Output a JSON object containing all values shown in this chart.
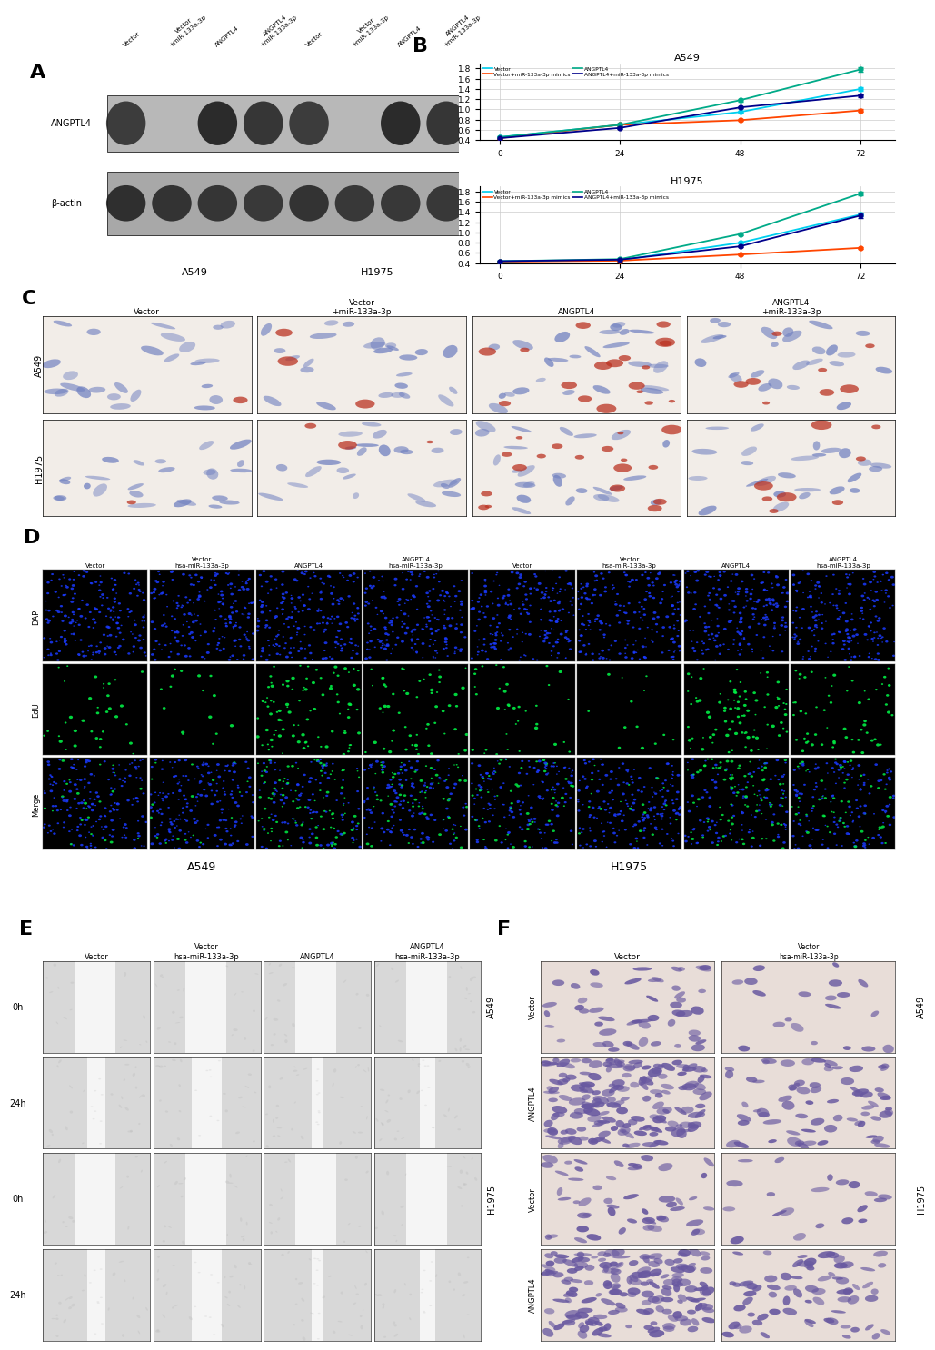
{
  "panel_A": {
    "label": "A",
    "col_labels": [
      "Vector",
      "Vector\n+miR-133a-3p",
      "ANGPTL4",
      "ANGPTL4\n+miR-133a-3p",
      "Vector",
      "Vector\n+miR-133a-3p",
      "ANGPTL4",
      "ANGPTL4\n+miR-133a-3p"
    ],
    "row_labels": [
      "ANGPTL4",
      "β-actin"
    ],
    "cell_line_labels": [
      "A549",
      "H1975"
    ],
    "angptl4_has_band": [
      true,
      false,
      true,
      true,
      true,
      false,
      true,
      true
    ],
    "beta_has_band": [
      true,
      true,
      true,
      true,
      true,
      true,
      true,
      true
    ]
  },
  "panel_B": {
    "label": "B",
    "A549": {
      "title": "A549",
      "x": [
        0,
        24,
        48,
        72
      ],
      "series": {
        "Vector": {
          "color": "#00CFEF",
          "values": [
            0.46,
            0.7,
            0.95,
            1.4
          ],
          "err": [
            0.01,
            0.02,
            0.02,
            0.03
          ]
        },
        "Vector+miR-133a-3p mimics": {
          "color": "#FF4500",
          "values": [
            0.44,
            0.7,
            0.79,
            0.98
          ],
          "err": [
            0.01,
            0.02,
            0.02,
            0.02
          ]
        },
        "ANGPTL4": {
          "color": "#00AA88",
          "values": [
            0.46,
            0.7,
            1.18,
            1.78
          ],
          "err": [
            0.01,
            0.02,
            0.03,
            0.04
          ]
        },
        "ANGPTL4+miR-133a-3p mimics": {
          "color": "#00008B",
          "values": [
            0.44,
            0.64,
            1.04,
            1.27
          ],
          "err": [
            0.01,
            0.02,
            0.02,
            0.03
          ]
        }
      },
      "ylim": [
        0.4,
        1.9
      ],
      "yticks": [
        0.4,
        0.6,
        0.8,
        1.0,
        1.2,
        1.4,
        1.6,
        1.8
      ]
    },
    "H1975": {
      "title": "H1975",
      "x": [
        0,
        24,
        48,
        72
      ],
      "series": {
        "Vector": {
          "color": "#00CFEF",
          "values": [
            0.44,
            0.46,
            0.8,
            1.35
          ],
          "err": [
            0.01,
            0.02,
            0.02,
            0.03
          ]
        },
        "Vector+miR-133a-3p mimics": {
          "color": "#FF4500",
          "values": [
            0.43,
            0.45,
            0.57,
            0.7
          ],
          "err": [
            0.01,
            0.01,
            0.02,
            0.02
          ]
        },
        "ANGPTL4": {
          "color": "#00AA88",
          "values": [
            0.44,
            0.48,
            0.97,
            1.76
          ],
          "err": [
            0.01,
            0.02,
            0.03,
            0.04
          ]
        },
        "ANGPTL4+miR-133a-3p mimics": {
          "color": "#00008B",
          "values": [
            0.44,
            0.47,
            0.73,
            1.33
          ],
          "err": [
            0.01,
            0.02,
            0.02,
            0.04
          ]
        }
      },
      "ylim": [
        0.4,
        1.9
      ],
      "yticks": [
        0.4,
        0.6,
        0.8,
        1.0,
        1.2,
        1.4,
        1.6,
        1.8
      ]
    }
  },
  "panel_C": {
    "label": "C",
    "row_labels": [
      "A549",
      "H1975"
    ],
    "col_labels": [
      "Vector",
      "Vector\n+miR-133a-3p",
      "ANGPTL4",
      "ANGPTL4\n+miR-133a-3p"
    ],
    "bg_color": "#f5f0eb",
    "cell_color": "#8090c8",
    "red_dot_color": "#cc3322"
  },
  "panel_D": {
    "label": "D",
    "row_labels": [
      "DAPI",
      "EdU",
      "Merge"
    ],
    "col_labels_A549": [
      "Vector",
      "Vector\nhsa-miR-133a-3p",
      "ANGPTL4",
      "ANGPTL4\nhsa-miR-133a-3p"
    ],
    "col_labels_H1975": [
      "Vector",
      "Vector\nhsa-miR-133a-3p",
      "ANGPTL4",
      "ANGPTL4\nhsa-miR-133a-3p"
    ],
    "cell_line_labels": [
      "A549",
      "H1975"
    ],
    "dapi_color": "#2244FF",
    "edu_color": "#00EE44",
    "n_cells": 200
  },
  "panel_E": {
    "label": "E",
    "row_labels": [
      "0h",
      "24h",
      "0h",
      "24h"
    ],
    "col_labels": [
      "Vector",
      "Vector\nhsa-miR-133a-3p",
      "ANGPTL4",
      "ANGPTL4\nhsa-miR-133a-3p"
    ],
    "cell_line_labels": [
      "A549",
      "H1975"
    ],
    "bg_color": "#d8d8d8",
    "scratch_color": "#f0f0f0"
  },
  "panel_F": {
    "label": "F",
    "col_labels_top": [
      "Vector",
      "Vector\nhsa-miR-133a-3p"
    ],
    "col_labels_H1975_r1": [
      "Vector",
      "Vector\nhsa-miR-133a-3p"
    ],
    "row_labels_A549": [
      "Vector",
      "ANGPTL4"
    ],
    "row_labels_H1975": [
      "Vector",
      "ANGPTL4"
    ],
    "cell_line_labels": [
      "A549",
      "H1975"
    ],
    "bg_color": "#e8ddd8",
    "cell_color": "#7060a0"
  }
}
